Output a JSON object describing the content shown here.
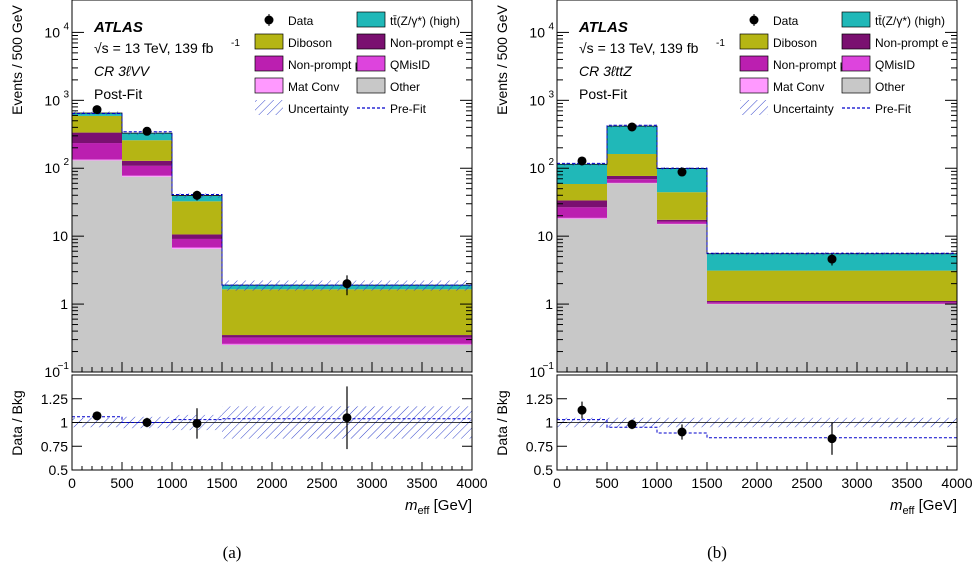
{
  "figure": {
    "captions": [
      "(a)",
      "(b)"
    ]
  },
  "chart_data": [
    {
      "type": "bar",
      "stacked": true,
      "panel_caption": "(a)",
      "atlas_label": "ATLAS",
      "energy_label": "√s = 13 TeV, 139 fb",
      "energy_label_sup": "-1",
      "region_label": "CR 3ℓVV",
      "fit_label": "Post-Fit",
      "ylabel": "Events / 500 GeV",
      "ratio_ylabel": "Data / Bkg",
      "xlabel_main": "m",
      "xlabel_sub": "eff",
      "xlabel_unit": " [GeV]",
      "log_y": true,
      "ylim": [
        0.1,
        30000
      ],
      "ratio_ylim": [
        0.5,
        1.5
      ],
      "xlim": [
        0,
        4000
      ],
      "x_ticks": [
        "0",
        "500",
        "1000",
        "1500",
        "2000",
        "2500",
        "3000",
        "3500",
        "4000"
      ],
      "y_ticks": [
        {
          "v": 0.1,
          "label": "10",
          "sup": "−1"
        },
        {
          "v": 1,
          "label": "1",
          "sup": ""
        },
        {
          "v": 10,
          "label": "10",
          "sup": ""
        },
        {
          "v": 100,
          "label": "10",
          "sup": "2"
        },
        {
          "v": 1000,
          "label": "10",
          "sup": "3"
        },
        {
          "v": 10000,
          "label": "10",
          "sup": "4"
        }
      ],
      "ratio_ticks": [
        "0.5",
        "0.75",
        "1",
        "1.25"
      ],
      "bin_edges": [
        0,
        500,
        1000,
        1500,
        4000
      ],
      "stack": [
        {
          "name": "Other",
          "color": "#c8c8c8",
          "values": [
            130,
            75,
            6.5,
            0.25
          ]
        },
        {
          "name": "Mat Conv",
          "color": "#ff99ff",
          "values": [
            3,
            2,
            0.2,
            0.005
          ]
        },
        {
          "name": "QMisID",
          "color": "#dd44dd",
          "values": [
            2,
            1.5,
            0.2,
            0.005
          ]
        },
        {
          "name": "Non-prompt μ",
          "color": "#bb1fb0",
          "values": [
            100,
            30,
            2.2,
            0.06
          ]
        },
        {
          "name": "Non-prompt e",
          "color": "#7a1070",
          "values": [
            100,
            20,
            1.5,
            0.03
          ]
        },
        {
          "name": "Diboson",
          "color": "#b5b514",
          "values": [
            255,
            130,
            22,
            1.3
          ]
        },
        {
          "name": "tt̄(Z/γ*) (high)",
          "color": "#20b8b8",
          "values": [
            60,
            70,
            7,
            0.25
          ]
        }
      ],
      "data": {
        "x": [
          250,
          750,
          1250,
          2750
        ],
        "y": [
          730,
          350,
          40,
          2.0
        ],
        "yerr_low": [
          27,
          19,
          6.5,
          0.65
        ],
        "yerr_high": [
          27,
          19,
          6.5,
          0.65
        ]
      },
      "prefit": [
        640,
        345,
        41,
        1.9
      ],
      "ratio": {
        "x": [
          250,
          750,
          1250,
          2750
        ],
        "y": [
          1.07,
          1.0,
          0.99,
          1.05
        ],
        "err": [
          0.04,
          0.05,
          0.16,
          0.33
        ]
      },
      "ratio_band": [
        0.05,
        0.06,
        0.08,
        0.17
      ],
      "ratio_prefit": [
        1.06,
        1.0,
        1.03,
        1.04
      ],
      "legend": {
        "placement": "top-right",
        "entries": [
          {
            "label": "Data",
            "kind": "marker"
          },
          {
            "label": "tt̄(Z/γ*) (high)",
            "kind": "box",
            "color": "#20b8b8"
          },
          {
            "label": "Diboson",
            "kind": "box",
            "color": "#b5b514"
          },
          {
            "label": "Non-prompt e",
            "kind": "box",
            "color": "#7a1070"
          },
          {
            "label": "Non-prompt μ",
            "kind": "box",
            "color": "#bb1fb0"
          },
          {
            "label": "QMisID",
            "kind": "box",
            "color": "#dd44dd"
          },
          {
            "label": "Mat Conv",
            "kind": "box",
            "color": "#ff99ff"
          },
          {
            "label": "Other",
            "kind": "box",
            "color": "#c8c8c8"
          },
          {
            "label": "Uncertainty",
            "kind": "hatch",
            "color": "#3344cc"
          },
          {
            "label": "Pre-Fit",
            "kind": "dashed",
            "color": "#0000cc"
          }
        ]
      }
    },
    {
      "type": "bar",
      "stacked": true,
      "panel_caption": "(b)",
      "atlas_label": "ATLAS",
      "energy_label": "√s = 13 TeV, 139 fb",
      "energy_label_sup": "-1",
      "region_label": "CR 3ℓttZ",
      "fit_label": "Post-Fit",
      "ylabel": "Events / 500 GeV",
      "ratio_ylabel": "Data / Bkg",
      "xlabel_main": "m",
      "xlabel_sub": "eff",
      "xlabel_unit": " [GeV]",
      "log_y": true,
      "ylim": [
        0.1,
        30000
      ],
      "ratio_ylim": [
        0.5,
        1.5
      ],
      "xlim": [
        0,
        4000
      ],
      "x_ticks": [
        "0",
        "500",
        "1000",
        "1500",
        "2000",
        "2500",
        "3000",
        "3500",
        "4000"
      ],
      "y_ticks": [
        {
          "v": 0.1,
          "label": "10",
          "sup": "−1"
        },
        {
          "v": 1,
          "label": "1",
          "sup": ""
        },
        {
          "v": 10,
          "label": "10",
          "sup": ""
        },
        {
          "v": 100,
          "label": "10",
          "sup": "2"
        },
        {
          "v": 1000,
          "label": "10",
          "sup": "3"
        },
        {
          "v": 10000,
          "label": "10",
          "sup": "4"
        }
      ],
      "ratio_ticks": [
        "0.5",
        "0.75",
        "1",
        "1.25"
      ],
      "bin_edges": [
        0,
        500,
        1000,
        1500,
        4000
      ],
      "stack": [
        {
          "name": "Other",
          "color": "#c8c8c8",
          "values": [
            18,
            60,
            15,
            1.0
          ]
        },
        {
          "name": "Mat Conv",
          "color": "#ff99ff",
          "values": [
            0.3,
            0.5,
            0.1,
            0.005
          ]
        },
        {
          "name": "QMisID",
          "color": "#dd44dd",
          "values": [
            0.3,
            0.5,
            0.1,
            0.005
          ]
        },
        {
          "name": "Non-prompt μ",
          "color": "#bb1fb0",
          "values": [
            8,
            8,
            1.2,
            0.05
          ]
        },
        {
          "name": "Non-prompt e",
          "color": "#7a1070",
          "values": [
            7,
            8,
            1.0,
            0.05
          ]
        },
        {
          "name": "Diboson",
          "color": "#b5b514",
          "values": [
            25,
            85,
            27,
            2.0
          ]
        },
        {
          "name": "tt̄(Z/γ*) (high)",
          "color": "#20b8b8",
          "values": [
            56,
            255,
            55,
            2.4
          ]
        }
      ],
      "data": {
        "x": [
          250,
          750,
          1250,
          2750
        ],
        "y": [
          128,
          405,
          88,
          4.6
        ],
        "yerr_low": [
          11,
          20,
          9.4,
          0.9
        ],
        "yerr_high": [
          11,
          20,
          9.4,
          0.9
        ]
      },
      "prefit": [
        118,
        430,
        100,
        5.6
      ],
      "ratio": {
        "x": [
          250,
          750,
          1250,
          2750
        ],
        "y": [
          1.13,
          0.98,
          0.9,
          0.83
        ],
        "err": [
          0.09,
          0.05,
          0.08,
          0.17
        ]
      },
      "ratio_band": [
        0.05,
        0.05,
        0.05,
        0.05
      ],
      "ratio_prefit": [
        1.03,
        0.95,
        0.89,
        0.84
      ],
      "legend": {
        "placement": "top-right",
        "entries": [
          {
            "label": "Data",
            "kind": "marker"
          },
          {
            "label": "tt̄(Z/γ*) (high)",
            "kind": "box",
            "color": "#20b8b8"
          },
          {
            "label": "Diboson",
            "kind": "box",
            "color": "#b5b514"
          },
          {
            "label": "Non-prompt e",
            "kind": "box",
            "color": "#7a1070"
          },
          {
            "label": "Non-prompt μ",
            "kind": "box",
            "color": "#bb1fb0"
          },
          {
            "label": "QMisID",
            "kind": "box",
            "color": "#dd44dd"
          },
          {
            "label": "Mat Conv",
            "kind": "box",
            "color": "#ff99ff"
          },
          {
            "label": "Other",
            "kind": "box",
            "color": "#c8c8c8"
          },
          {
            "label": "Uncertainty",
            "kind": "hatch",
            "color": "#3344cc"
          },
          {
            "label": "Pre-Fit",
            "kind": "dashed",
            "color": "#0000cc"
          }
        ]
      }
    }
  ]
}
